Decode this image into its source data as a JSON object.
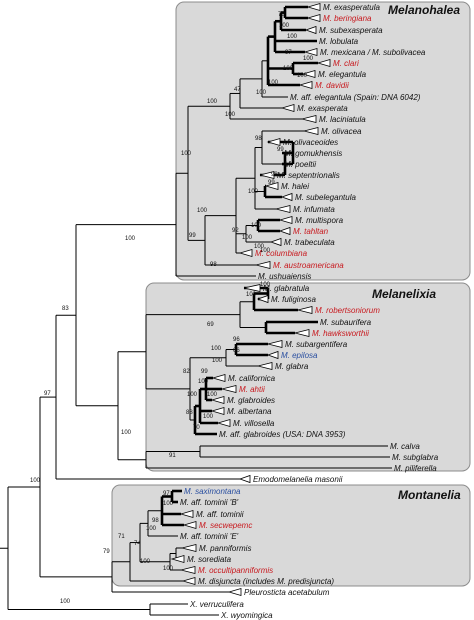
{
  "clades": [
    {
      "id": "melanohalea",
      "title": "Melanohalea"
    },
    {
      "id": "melanelixia",
      "title": "Melanelixia"
    },
    {
      "id": "montanelia",
      "title": "Montanelia"
    }
  ],
  "taxa": [
    {
      "label": "M. exasperatula",
      "color": "black",
      "collapsed": true
    },
    {
      "label": "M. beringiana",
      "color": "red",
      "collapsed": true
    },
    {
      "label": "M. subexasperata",
      "color": "black",
      "collapsed": true
    },
    {
      "label": "M. lobulata",
      "color": "black",
      "collapsed": false
    },
    {
      "label": "M. mexicana / M. subolivacea",
      "color": "black",
      "collapsed": true
    },
    {
      "label": "M. clari",
      "color": "red",
      "collapsed": true
    },
    {
      "label": "M. elegantula",
      "color": "black",
      "collapsed": true
    },
    {
      "label": "M. davidii",
      "color": "red",
      "collapsed": true
    },
    {
      "label": "M. aff. elegantula (Spain: DNA  6042)",
      "color": "black",
      "collapsed": false
    },
    {
      "label": "M. exasperata",
      "color": "black",
      "collapsed": true
    },
    {
      "label": "M. laciniatula",
      "color": "black",
      "collapsed": true
    },
    {
      "label": "M. olivacea",
      "color": "black",
      "collapsed": true
    },
    {
      "label": "M. olivaceoides",
      "color": "black",
      "collapsed": true
    },
    {
      "label": "M. gomukhensis",
      "color": "black",
      "collapsed": false
    },
    {
      "label": "M. poeltii",
      "color": "black",
      "collapsed": false
    },
    {
      "label": "M. septentrionalis",
      "color": "black",
      "collapsed": true
    },
    {
      "label": "M. halei",
      "color": "black",
      "collapsed": true
    },
    {
      "label": "M. subelegantula",
      "color": "black",
      "collapsed": true
    },
    {
      "label": "M. infumata",
      "color": "black",
      "collapsed": true
    },
    {
      "label": "M. multispora",
      "color": "black",
      "collapsed": true
    },
    {
      "label": "M. tahltan",
      "color": "red",
      "collapsed": true
    },
    {
      "label": "M. trabeculata",
      "color": "black",
      "collapsed": true
    },
    {
      "label": "M. columbiana",
      "color": "red",
      "collapsed": true
    },
    {
      "label": "M. austroamericana",
      "color": "red",
      "collapsed": true
    },
    {
      "label": "M. ushuaiensis",
      "color": "black",
      "collapsed": false
    },
    {
      "label": "M. glabratula",
      "color": "black",
      "collapsed": true
    },
    {
      "label": "M. fuliginosa",
      "color": "black",
      "collapsed": true
    },
    {
      "label": "M. robertsoniorum",
      "color": "red",
      "collapsed": true
    },
    {
      "label": "M. subaurifera",
      "color": "black",
      "collapsed": true
    },
    {
      "label": "M. hawksworthii",
      "color": "red",
      "collapsed": true
    },
    {
      "label": "M. subargentifera",
      "color": "black",
      "collapsed": true
    },
    {
      "label": "M. epilosa",
      "color": "blue",
      "collapsed": true
    },
    {
      "label": "M. glabra",
      "color": "black",
      "collapsed": true
    },
    {
      "label": "M. californica",
      "color": "black",
      "collapsed": true
    },
    {
      "label": "M. ahtii",
      "color": "red",
      "collapsed": true
    },
    {
      "label": "M. glabroides",
      "color": "black",
      "collapsed": true
    },
    {
      "label": "M. albertana",
      "color": "black",
      "collapsed": true
    },
    {
      "label": "M. villosella",
      "color": "black",
      "collapsed": true
    },
    {
      "label": "M. aff. glabroides (USA: DNA 3953)",
      "color": "black",
      "collapsed": false
    },
    {
      "label": "M. calva",
      "color": "black",
      "collapsed": false
    },
    {
      "label": "M. subglabra",
      "color": "black",
      "collapsed": false
    },
    {
      "label": "M. piliferella",
      "color": "black",
      "collapsed": false
    },
    {
      "label": "Emodomelanelia masonii",
      "color": "black",
      "collapsed": true
    },
    {
      "label": "M. saximontana",
      "color": "blue",
      "collapsed": false
    },
    {
      "label": "M. aff. tominii 'B'",
      "color": "black",
      "collapsed": false
    },
    {
      "label": "M. aff. tominii",
      "color": "black",
      "collapsed": true
    },
    {
      "label": "M. secwepemc",
      "color": "red",
      "collapsed": true
    },
    {
      "label": "M. aff. tominii 'E'",
      "color": "black",
      "collapsed": false
    },
    {
      "label": "M. panniformis",
      "color": "black",
      "collapsed": true
    },
    {
      "label": "M. sorediata",
      "color": "black",
      "collapsed": true
    },
    {
      "label": "M. occultipanniformis",
      "color": "red",
      "collapsed": true
    },
    {
      "label": "M. disjuncta (includes M. predisjuncta)",
      "color": "black",
      "collapsed": true
    },
    {
      "label": "Pleurosticta acetabulum",
      "color": "black",
      "collapsed": true
    },
    {
      "label": "X. verruculifera",
      "color": "black",
      "collapsed": false
    },
    {
      "label": "X. wyomingica",
      "color": "black",
      "collapsed": false
    }
  ],
  "support_values": [
    "78",
    "100",
    "100",
    "97",
    "100",
    "100",
    "100",
    "100",
    "100",
    "47",
    "100",
    "100",
    "100",
    "98",
    "99",
    "98",
    "99",
    "100",
    "92",
    "100",
    "100",
    "100",
    "100",
    "98",
    "100",
    "99",
    "100",
    "100",
    "69",
    "100",
    "96",
    "66",
    "100",
    "100",
    "99",
    "100",
    "82",
    "100",
    "100",
    "100",
    "88",
    "70",
    "91",
    "100",
    "83",
    "97",
    "100",
    "97",
    "100",
    "98",
    "100",
    "74",
    "71",
    "100",
    "79",
    "100",
    "100"
  ],
  "colors": {
    "red": "#c8191e",
    "blue": "#2a4fa0",
    "black": "#111111",
    "box": "#d9d9d9"
  }
}
